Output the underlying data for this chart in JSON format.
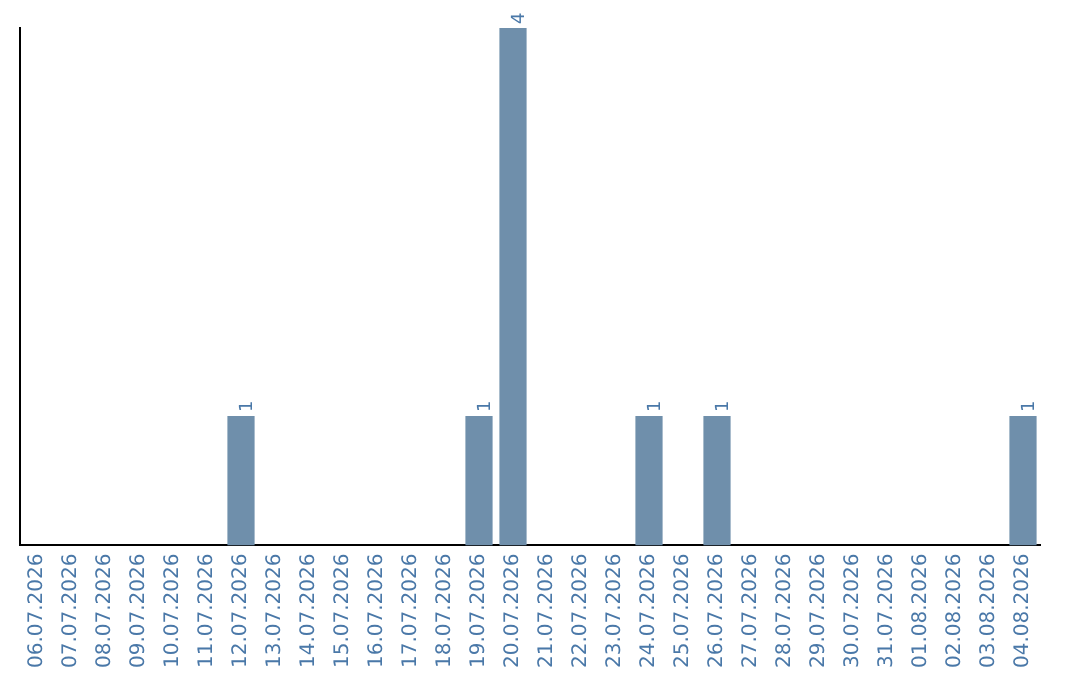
{
  "chart_data": {
    "type": "bar",
    "categories": [
      "06.07.2026",
      "07.07.2026",
      "08.07.2026",
      "09.07.2026",
      "10.07.2026",
      "11.07.2026",
      "12.07.2026",
      "13.07.2026",
      "14.07.2026",
      "15.07.2026",
      "16.07.2026",
      "17.07.2026",
      "18.07.2026",
      "19.07.2026",
      "20.07.2026",
      "21.07.2026",
      "22.07.2026",
      "23.07.2026",
      "24.07.2026",
      "25.07.2026",
      "26.07.2026",
      "27.07.2026",
      "28.07.2026",
      "29.07.2026",
      "30.07.2026",
      "31.07.2026",
      "01.08.2026",
      "02.08.2026",
      "03.08.2026",
      "04.08.2026"
    ],
    "values": [
      0,
      0,
      0,
      0,
      0,
      0,
      1,
      0,
      0,
      0,
      0,
      0,
      0,
      1,
      4,
      0,
      0,
      0,
      1,
      0,
      1,
      0,
      0,
      0,
      0,
      0,
      0,
      0,
      0,
      1
    ],
    "value_labels": [
      null,
      null,
      null,
      null,
      null,
      null,
      "1",
      null,
      null,
      null,
      null,
      null,
      null,
      "1",
      "4",
      null,
      null,
      null,
      "1",
      null,
      "1",
      null,
      null,
      null,
      null,
      null,
      null,
      null,
      null,
      "1"
    ],
    "color": "#6f8fab",
    "grid": false,
    "legend": false,
    "tick_labels": "x"
  }
}
